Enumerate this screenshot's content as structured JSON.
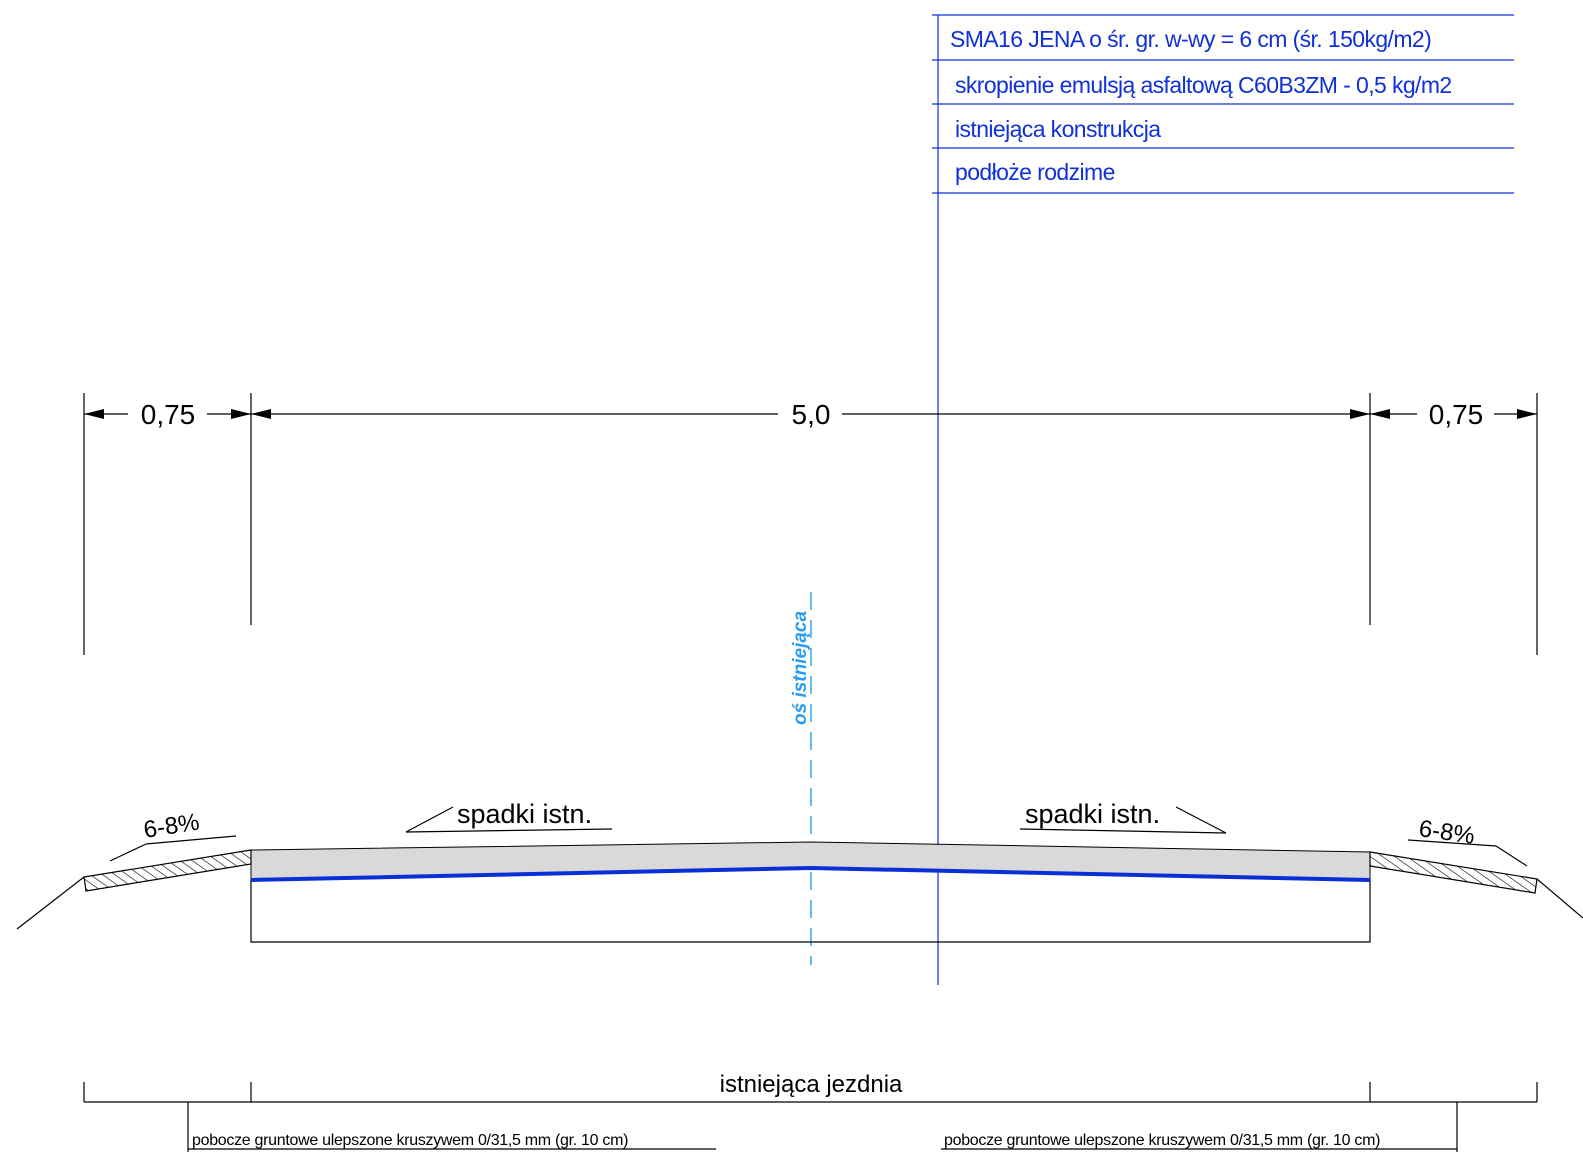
{
  "layers": [
    "SMA16 JENA o śr. gr. w-wy = 6 cm (śr. 150kg/m2)",
    "skropienie emulsją asfaltową C60B3ZM - 0,5 kg/m2",
    "istniejąca konstrukcja",
    "podłoże rodzime"
  ],
  "dimensions": {
    "shoulder_left": "0,75",
    "carriageway": "5,0",
    "shoulder_right": "0,75"
  },
  "axis_label": "oś istniejąca",
  "slopes": {
    "left_shoulder": "6-8%",
    "right_shoulder": "6-8%",
    "left_road": "spadki istn.",
    "right_road": "spadki istn."
  },
  "bottom": {
    "carriageway_label": "istniejąca jezdnia",
    "shoulder_left_label": "pobocze gruntowe ulepszone kruszywem 0/31,5 mm (gr. 10 cm)",
    "shoulder_right_label": "pobocze gruntowe ulepszone kruszywem 0/31,5 mm (gr. 10 cm)"
  },
  "colors": {
    "layer_text": "#1030d8",
    "emulsion_line": "#0a2fd6",
    "axis": "#2b9cf0",
    "asphalt_fill": "#d9d9d9"
  }
}
